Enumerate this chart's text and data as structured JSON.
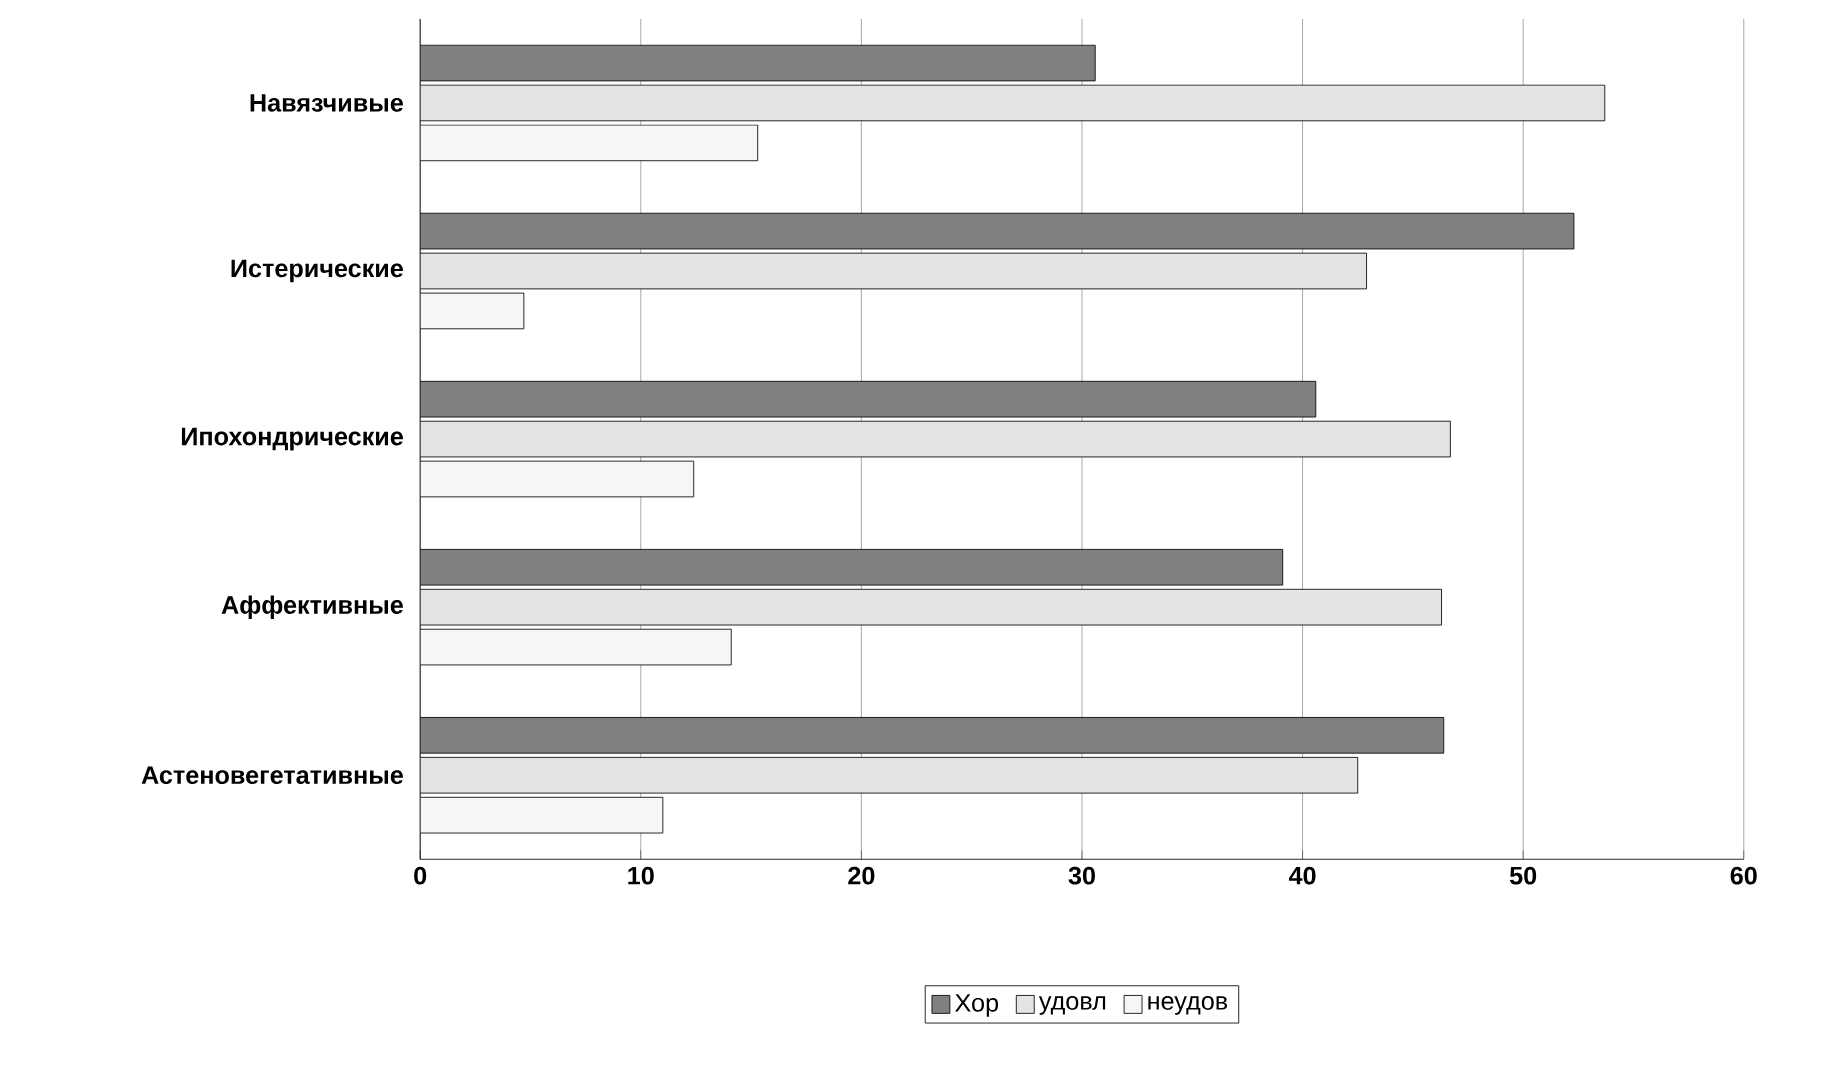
{
  "chart_data": {
    "type": "bar",
    "orientation": "horizontal",
    "categories": [
      "Навязчивые",
      "Истерические",
      "Ипохондрические",
      "Аффективные",
      "Астеновегетативные"
    ],
    "series": [
      {
        "name": "Хор",
        "color": "#808080",
        "values": [
          30.6,
          52.3,
          40.6,
          39.1,
          46.4
        ]
      },
      {
        "name": "удовл",
        "color": "#e4e4e4",
        "values": [
          53.7,
          42.9,
          46.7,
          46.3,
          42.5
        ]
      },
      {
        "name": "неудов",
        "color": "#f6f6f6",
        "values": [
          15.3,
          4.7,
          12.4,
          14.1,
          11
        ]
      }
    ],
    "xlim": [
      0,
      60
    ],
    "xticks": [
      0,
      10,
      20,
      30,
      40,
      50,
      60
    ],
    "grid": "x",
    "legend": "bottom"
  }
}
